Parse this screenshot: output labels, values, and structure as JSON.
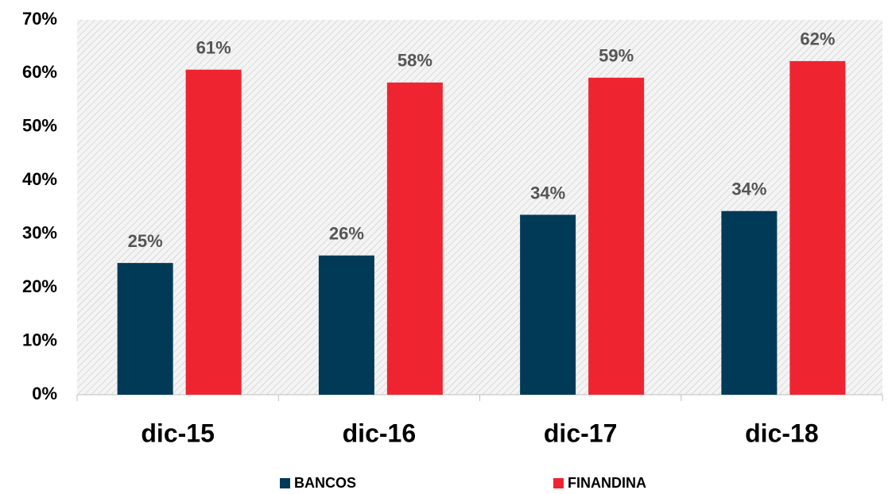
{
  "chart_data": {
    "type": "bar",
    "categories": [
      "dic-15",
      "dic-16",
      "dic-17",
      "dic-18"
    ],
    "series": [
      {
        "name": "BANCOS",
        "color": "#003a57",
        "values": [
          24.6,
          26.0,
          33.6,
          34.3
        ],
        "value_labels": [
          "25%",
          "26%",
          "34%",
          "34%"
        ]
      },
      {
        "name": "FINANDINA",
        "color": "#ee2530",
        "values": [
          60.7,
          58.3,
          59.2,
          62.3
        ],
        "value_labels": [
          "61%",
          "58%",
          "59%",
          "62%"
        ]
      }
    ],
    "ylim": [
      0,
      70
    ],
    "yticks": [
      {
        "value": 0,
        "label": "0%"
      },
      {
        "value": 10,
        "label": "10%"
      },
      {
        "value": 20,
        "label": "20%"
      },
      {
        "value": 30,
        "label": "30%"
      },
      {
        "value": 40,
        "label": "40%"
      },
      {
        "value": 50,
        "label": "50%"
      },
      {
        "value": 60,
        "label": "60%"
      },
      {
        "value": 70,
        "label": "70%"
      }
    ],
    "legend": "bottom"
  }
}
